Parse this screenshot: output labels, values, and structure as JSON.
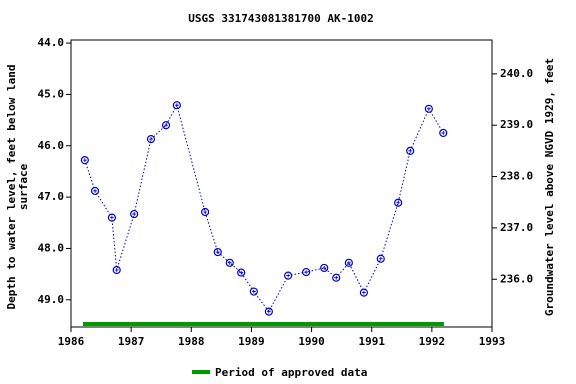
{
  "chart_data": {
    "type": "line",
    "title": "USGS 331743081381700 AK-1002",
    "y_label": [
      "Depth to water level, feet below land",
      "surface"
    ],
    "y2_label": "Groundwater level above NGVD 1929, feet",
    "x": [
      1986.23,
      1986.4,
      1986.68,
      1986.76,
      1987.05,
      1987.33,
      1987.58,
      1987.76,
      1988.23,
      1988.44,
      1988.64,
      1988.83,
      1989.04,
      1989.29,
      1989.61,
      1989.91,
      1990.21,
      1990.41,
      1990.62,
      1990.87,
      1991.15,
      1991.44,
      1991.64,
      1991.95,
      1992.19
    ],
    "series": [
      {
        "name": "Depth to water level",
        "color": "#0000cc",
        "values": [
          46.28,
          46.88,
          47.4,
          48.42,
          47.33,
          45.87,
          45.6,
          45.21,
          47.29,
          48.07,
          48.28,
          48.47,
          48.84,
          49.23,
          48.53,
          48.46,
          48.38,
          48.57,
          48.28,
          48.86,
          48.2,
          47.11,
          46.1,
          45.28,
          45.75
        ]
      }
    ],
    "approved_period": {
      "name": "Period of approved data",
      "color": "#009900",
      "start": 1986.2,
      "end": 1992.2
    },
    "xlim": [
      1986,
      1993
    ],
    "xticks": [
      1986,
      1987,
      1988,
      1989,
      1990,
      1991,
      1992,
      1993
    ],
    "ylim": [
      49.53,
      43.94
    ],
    "yticks": [
      {
        "value": 44,
        "label": "44.0"
      },
      {
        "value": 45,
        "label": "45.0"
      },
      {
        "value": 46,
        "label": "46.0"
      },
      {
        "value": 47,
        "label": "47.0"
      },
      {
        "value": 48,
        "label": "48.0"
      },
      {
        "value": 49,
        "label": "49.0"
      }
    ],
    "y2lim": [
      235.07,
      240.66
    ],
    "y2ticks": [
      {
        "value": 236,
        "label": "236.0"
      },
      {
        "value": 237,
        "label": "237.0"
      },
      {
        "value": 238,
        "label": "238.0"
      },
      {
        "value": 239,
        "label": "239.0"
      },
      {
        "value": 240,
        "label": "240.0"
      }
    ]
  }
}
